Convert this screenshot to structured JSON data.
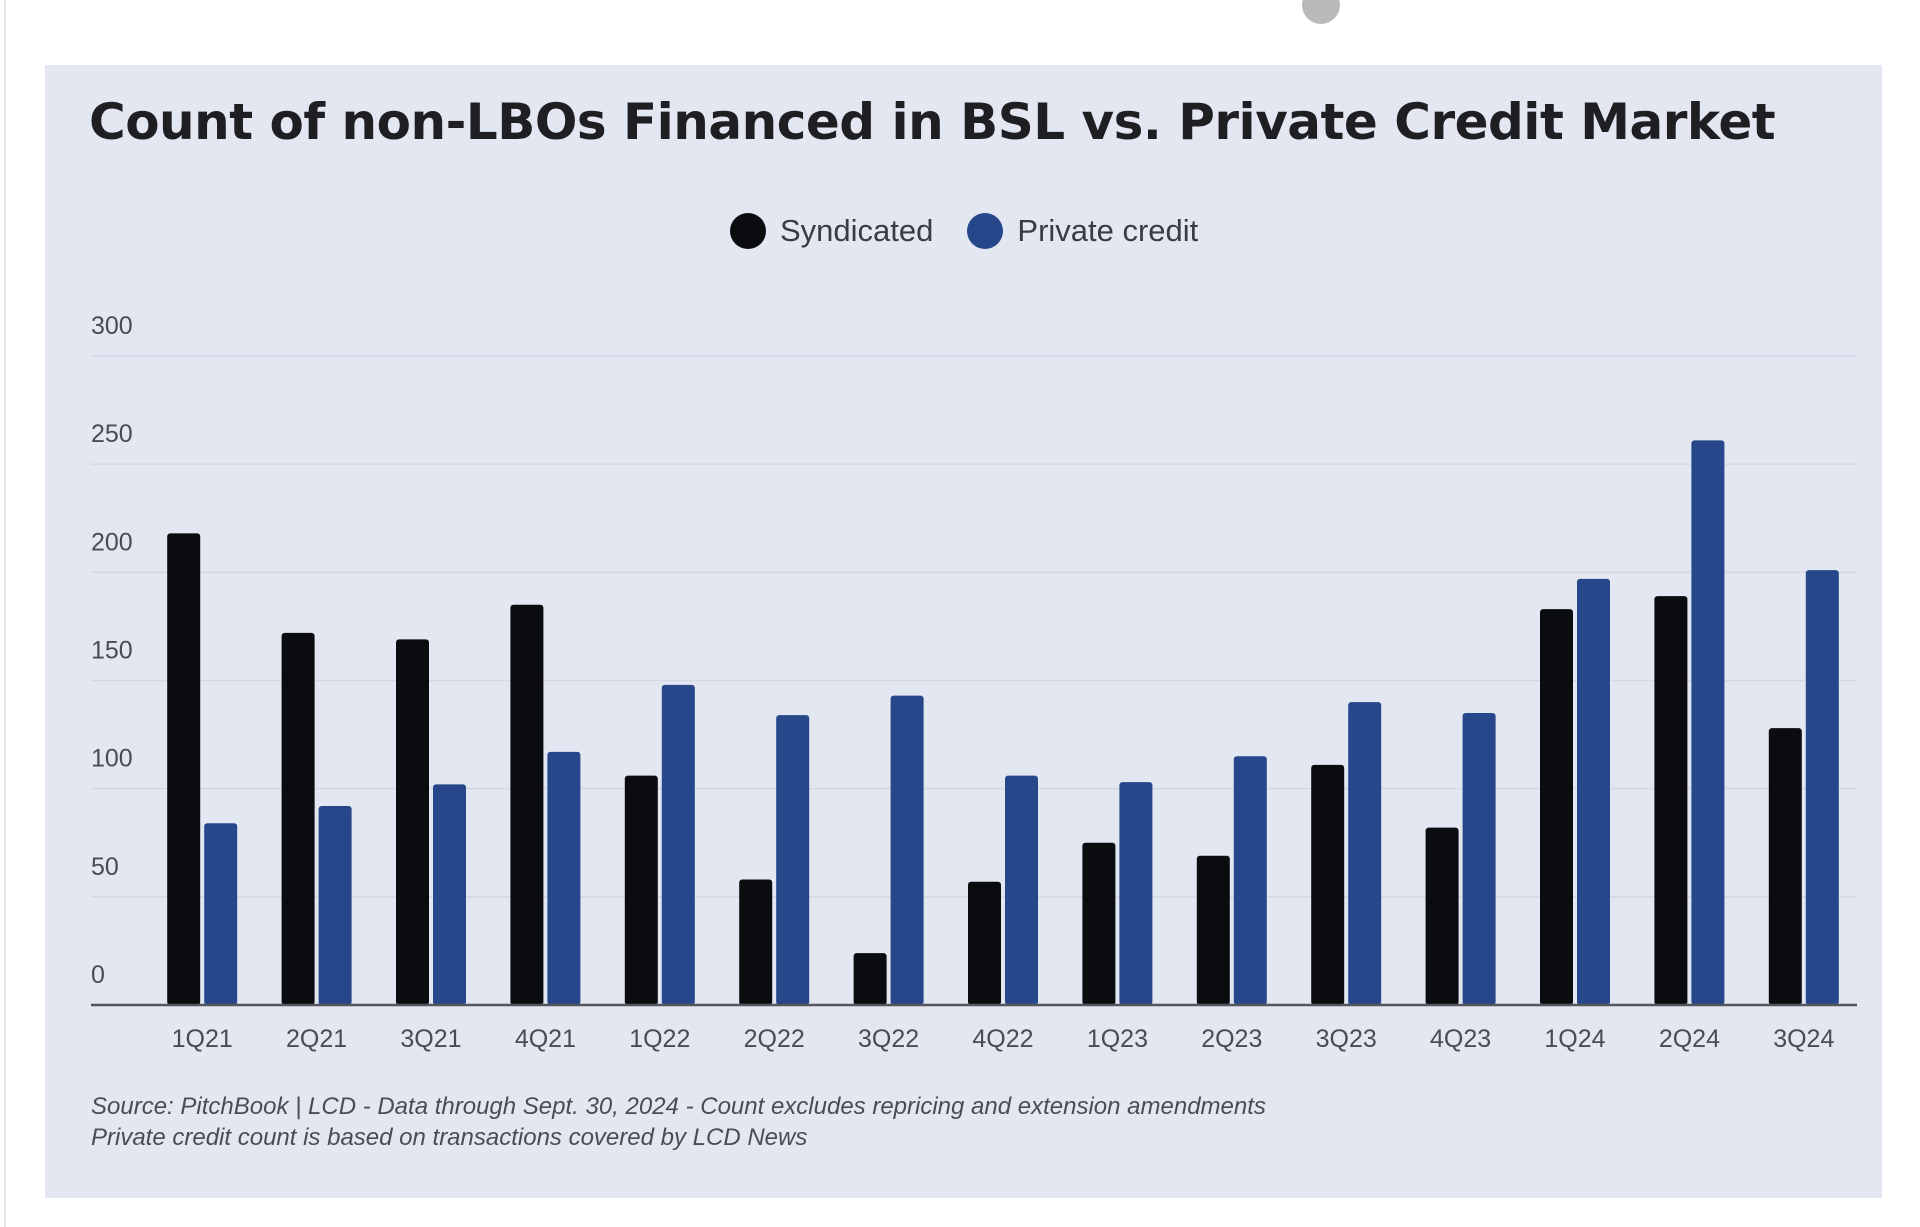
{
  "chart_data": {
    "type": "bar",
    "title": "Count of non-LBOs Financed in BSL vs. Private Credit Market",
    "categories": [
      "1Q21",
      "2Q21",
      "3Q21",
      "4Q21",
      "1Q22",
      "2Q22",
      "3Q22",
      "4Q22",
      "1Q23",
      "2Q23",
      "3Q23",
      "4Q23",
      "1Q24",
      "2Q24",
      "3Q24"
    ],
    "series": [
      {
        "name": "Syndicated",
        "color": "#0b0c10",
        "values": [
          218,
          172,
          169,
          185,
          106,
          58,
          24,
          57,
          75,
          69,
          111,
          82,
          183,
          189,
          128
        ]
      },
      {
        "name": "Private credit",
        "color": "#26478a",
        "values": [
          84,
          92,
          102,
          117,
          148,
          134,
          143,
          106,
          103,
          115,
          140,
          135,
          197,
          261,
          201
        ]
      }
    ],
    "yticks": [
      "300",
      "250",
      "200",
      "150",
      "100",
      "50",
      "0"
    ],
    "ylim": [
      0,
      300
    ],
    "xlabel": "",
    "ylabel": "",
    "grid": true,
    "legend_position": "top-center"
  },
  "footnote": {
    "line1": "Source: PitchBook | LCD - Data through Sept. 30, 2024 - Count excludes repricing and extension amendments",
    "line2": "Private credit count is based on transactions covered by LCD News"
  },
  "colors": {
    "background": "#e3e7f2",
    "gridline": "#d4d8e4",
    "axis": "#55565c"
  }
}
